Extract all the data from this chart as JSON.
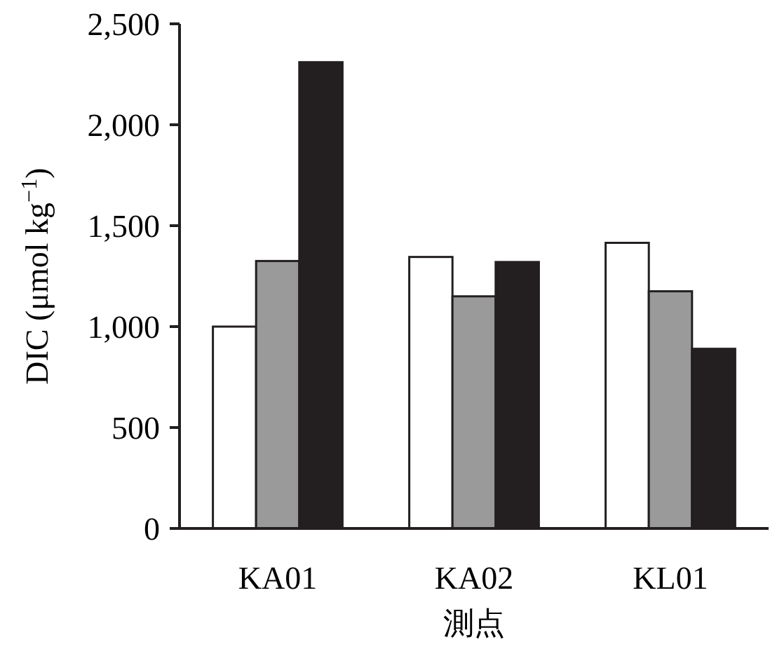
{
  "chart_data": {
    "type": "bar",
    "xlabel": "測点",
    "ylabel": "DIC (μmol kg$^{−1}$)",
    "categories": [
      "KA01",
      "KA02",
      "KL01"
    ],
    "series": [
      {
        "color": "#ffffff",
        "values": [
          1000,
          1345,
          1415
        ]
      },
      {
        "color": "#9a9a9a",
        "values": [
          1325,
          1150,
          1175
        ]
      },
      {
        "color": "#231f20",
        "values": [
          2310,
          1320,
          890
        ]
      }
    ],
    "ylim": [
      0,
      2500
    ],
    "yticks": [
      {
        "value": 0,
        "label": "0"
      },
      {
        "value": 500,
        "label": "500"
      },
      {
        "value": 1000,
        "label": "1,000"
      },
      {
        "value": 1500,
        "label": "1,500"
      },
      {
        "value": 2000,
        "label": "2,000"
      },
      {
        "value": 2500,
        "label": "2,500"
      }
    ],
    "grid": false
  }
}
